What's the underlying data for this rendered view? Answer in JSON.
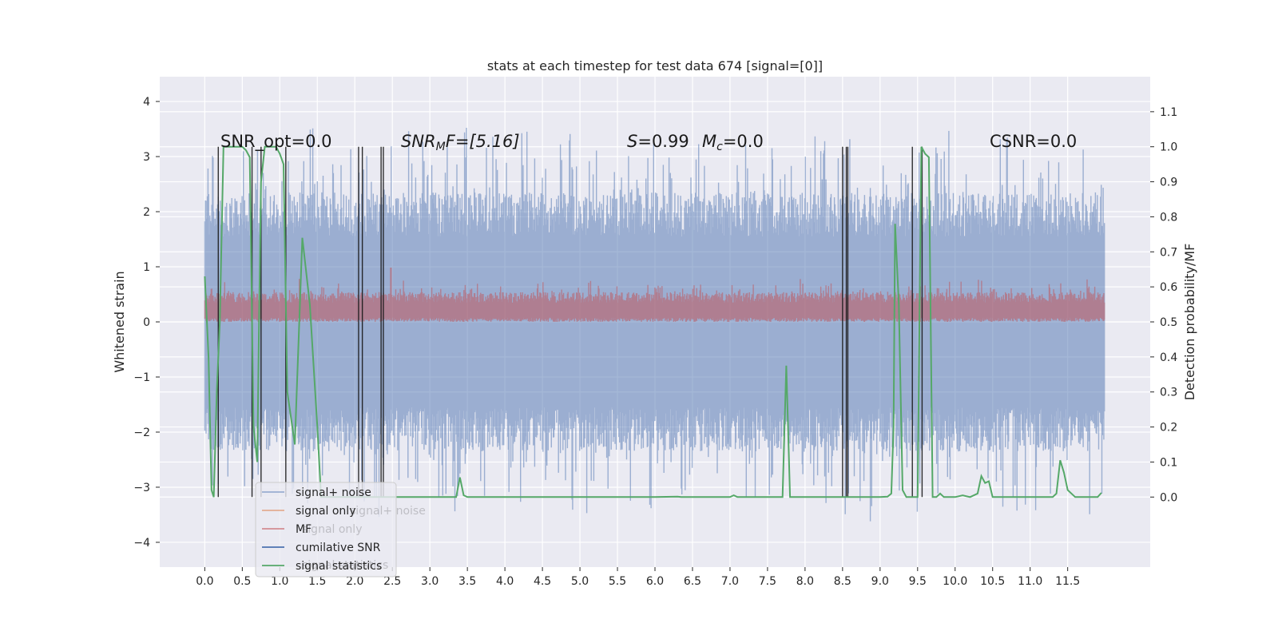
{
  "chart_data": {
    "type": "line",
    "title": "stats at each timestep for test data 674 [signal=[0]]",
    "xlabel": "",
    "ylabel": "Whitened strain",
    "ylabel_right": "Detection probability/MF",
    "xlim": [
      -0.6,
      12.6
    ],
    "ylim": [
      -4.45,
      4.45
    ],
    "ylim_right": [
      -0.2,
      1.2
    ],
    "x_ticks": [
      "0.0",
      "0.5",
      "1.0",
      "1.5",
      "2.0",
      "2.5",
      "3.0",
      "3.5",
      "4.0",
      "4.5",
      "5.0",
      "5.5",
      "6.0",
      "6.5",
      "7.0",
      "7.5",
      "8.0",
      "8.5",
      "9.0",
      "9.5",
      "10.0",
      "10.5",
      "11.0",
      "11.5"
    ],
    "y_ticks": [
      "4",
      "3",
      "2",
      "1",
      "0",
      "−1",
      "−2",
      "−3",
      "−4"
    ],
    "y_ticks_right": [
      "1.1",
      "1.0",
      "0.9",
      "0.8",
      "0.7",
      "0.6",
      "0.5",
      "0.4",
      "0.3",
      "0.2",
      "0.1",
      "0.0"
    ],
    "grid": true,
    "legend_position": "bottom-left",
    "annotations": {
      "snr_opt": "SNR_opt=0.0",
      "snr_mf_base": "SNR",
      "snr_mf_sub": "M",
      "snr_mf_rest": "F=[5.16]",
      "s_var": "S",
      "s_rest": "=0.99",
      "mc_var": "M",
      "mc_sub": "c",
      "mc_rest": "=0.0",
      "csnr": "CSNR=0.0"
    },
    "series": [
      {
        "name": "signal+ noise",
        "color": "#4c72b0",
        "axis": "left",
        "values": "noise band, amplitude ~ ±1.8 with spikes to ±3.9"
      },
      {
        "name": "signal only",
        "color": "#dd8452",
        "axis": "left",
        "values": []
      },
      {
        "name": "MF",
        "color": "#c44e52",
        "axis": "right",
        "values": "band 0.5–0.6, spike 0.65 near x=2.5"
      },
      {
        "name": "cumilative SNR",
        "color": "#4c72b0",
        "axis": "left",
        "values": []
      },
      {
        "name": "signal statistics",
        "color": "#55a868",
        "axis": "right",
        "x": [
          0.0,
          0.05,
          0.09,
          0.12,
          0.16,
          0.2,
          0.25,
          0.3,
          0.4,
          0.5,
          0.55,
          0.6,
          0.65,
          0.7,
          0.72,
          0.75,
          0.8,
          0.85,
          0.9,
          0.95,
          1.0,
          1.05,
          1.1,
          1.2,
          1.3,
          1.4,
          1.5,
          1.55,
          1.6,
          1.65,
          1.7,
          1.75,
          1.8,
          1.85,
          1.9,
          1.95,
          2.0,
          2.05,
          2.1,
          2.2,
          2.3,
          2.4,
          2.5,
          3.0,
          3.35,
          3.4,
          3.45,
          3.5,
          4.0,
          5.0,
          6.0,
          6.3,
          6.35,
          6.5,
          7.0,
          7.05,
          7.1,
          7.5,
          7.7,
          7.75,
          7.8,
          7.85,
          8.0,
          8.5,
          8.55,
          8.6,
          8.65,
          9.0,
          9.1,
          9.15,
          9.18,
          9.2,
          9.25,
          9.3,
          9.35,
          9.4,
          9.5,
          9.55,
          9.6,
          9.65,
          9.7,
          9.75,
          9.8,
          9.85,
          10.0,
          10.1,
          10.2,
          10.3,
          10.35,
          10.4,
          10.45,
          10.5,
          10.6,
          11.0,
          11.25,
          11.3,
          11.35,
          11.4,
          11.45,
          11.5,
          11.6,
          11.8,
          11.9,
          11.95
        ],
        "values": [
          0.63,
          0.4,
          0.02,
          0.0,
          0.3,
          0.5,
          1.0,
          1.0,
          1.0,
          1.0,
          0.99,
          0.97,
          0.2,
          0.1,
          0.45,
          0.9,
          1.0,
          1.0,
          1.0,
          1.0,
          0.98,
          0.95,
          0.3,
          0.15,
          0.74,
          0.55,
          0.2,
          0.0,
          0.0,
          0.0,
          0.0,
          0.0,
          0.0,
          0.0,
          0.0,
          0.0,
          0.0,
          0.0,
          0.0,
          0.0,
          0.0,
          0.0,
          0.0,
          0.0,
          0.0,
          0.056,
          0.005,
          0.0,
          0.0,
          0.0,
          0.0,
          0.001,
          0.0,
          0.0,
          0.0,
          0.005,
          0.0,
          0.0,
          0.0,
          0.375,
          0.0,
          0.0,
          0.0,
          0.0,
          0.0,
          0.0,
          0.0,
          0.0,
          0.001,
          0.01,
          0.2,
          0.78,
          0.55,
          0.02,
          0.0,
          0.0,
          0.0,
          1.0,
          0.98,
          0.97,
          0.0,
          0.0,
          0.01,
          0.0,
          0.0,
          0.005,
          0.0,
          0.01,
          0.06,
          0.04,
          0.045,
          0.0,
          0.0,
          0.0,
          0.0,
          0.0,
          0.01,
          0.105,
          0.07,
          0.02,
          0.0,
          0.0,
          0.0,
          0.012
        ]
      }
    ],
    "vlines_x": [
      0.18,
      0.63,
      0.75,
      1.08,
      2.05,
      2.1,
      2.35,
      2.38,
      8.5,
      8.55,
      8.57,
      9.43,
      9.56
    ],
    "colors": {
      "axes_bg": "#eaeaf2",
      "grid": "#ffffff",
      "noise": "#4c72b0",
      "mf": "#c44e52",
      "stats": "#55a868",
      "vlines": "#1a1a1a"
    }
  }
}
